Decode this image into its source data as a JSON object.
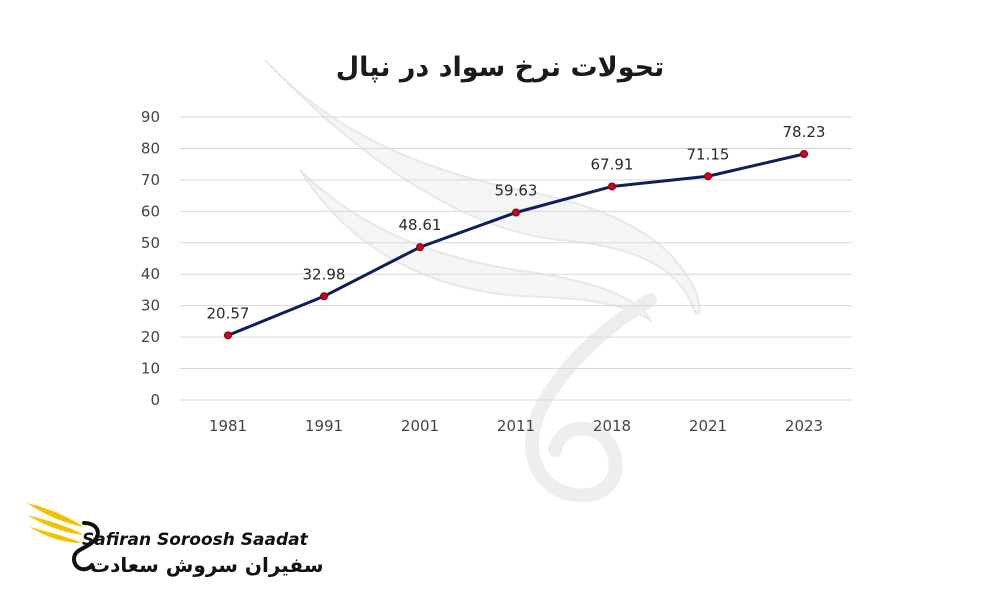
{
  "chart_data": {
    "type": "line",
    "title": "تحولات نرخ سواد در نپال",
    "categories": [
      "1981",
      "1991",
      "2001",
      "2011",
      "2018",
      "2021",
      "2023"
    ],
    "series": [
      {
        "values": [
          20.57,
          32.98,
          48.61,
          59.63,
          67.91,
          71.15,
          78.23
        ]
      }
    ],
    "data_labels": [
      "20.57",
      "32.98",
      "48.61",
      "59.63",
      "67.91",
      "71.15",
      "78.23"
    ],
    "y_ticks": [
      "0",
      "10",
      "20",
      "30",
      "40",
      "50",
      "60",
      "70",
      "80",
      "90"
    ],
    "ylim": [
      0,
      90
    ],
    "grid": true,
    "colors": {
      "line": "#0f1f5c",
      "marker": "#d0021b",
      "grid": "#d9d9d9"
    }
  },
  "branding": {
    "name_en": "Safiran Soroosh Saadat",
    "name_fa": "سفیران سروش سعادت",
    "logo_icon": "wing-logo-icon",
    "colors": {
      "wing": "#f2c200",
      "text": "#111111"
    }
  }
}
